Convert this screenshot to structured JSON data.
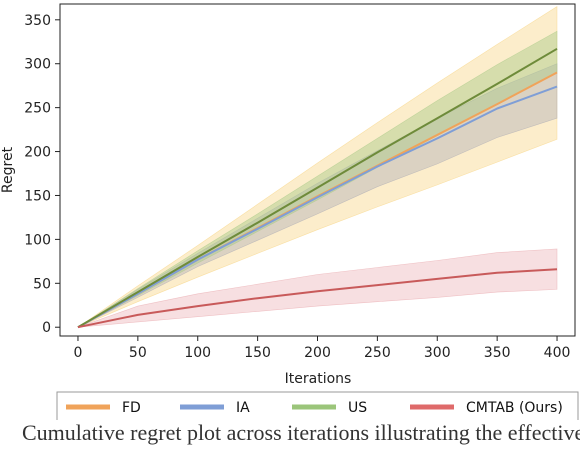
{
  "chart_data": {
    "type": "line",
    "title": "",
    "xlabel": "Iterations",
    "ylabel": "Regret",
    "xlim": [
      -15,
      415
    ],
    "ylim": [
      -10,
      368
    ],
    "xticks": [
      0,
      50,
      100,
      150,
      200,
      250,
      300,
      350,
      400
    ],
    "yticks": [
      0,
      50,
      100,
      150,
      200,
      250,
      300,
      350
    ],
    "grid": false,
    "legend_position": "bottom",
    "x": [
      0,
      50,
      100,
      150,
      200,
      250,
      300,
      350,
      400
    ],
    "series": [
      {
        "name": "FD",
        "color": "#f0a35a",
        "band_color": "#f7d27c",
        "values": [
          0,
          38,
          77,
          113,
          149,
          184,
          219,
          254,
          290
        ],
        "lower": [
          0,
          29,
          57,
          84,
          111,
          137,
          162,
          188,
          214
        ],
        "upper": [
          0,
          47,
          93,
          140,
          187,
          233,
          278,
          322,
          365
        ]
      },
      {
        "name": "IA",
        "color": "#7f9ed6",
        "band_color": "#a9a9b4",
        "values": [
          0,
          38,
          77,
          112,
          148,
          183,
          215,
          249,
          274
        ],
        "lower": [
          0,
          34,
          69,
          99,
          129,
          160,
          186,
          216,
          238
        ],
        "upper": [
          0,
          43,
          84,
          124,
          164,
          201,
          238,
          272,
          300
        ]
      },
      {
        "name": "US",
        "color": "#9bc57a",
        "band_color": "#a8c987",
        "line_color": "#6e8b3a",
        "values": [
          0,
          40,
          80,
          119,
          159,
          199,
          238,
          277,
          317
        ],
        "lower": [
          0,
          36,
          73,
          109,
          145,
          182,
          218,
          254,
          290
        ],
        "upper": [
          0,
          44,
          87,
          129,
          172,
          215,
          258,
          299,
          337
        ]
      },
      {
        "name": "CMTAB (Ours)",
        "color": "#df6a6a",
        "band_color": "#e7a3a8",
        "line_color": "#c85a5a",
        "values": [
          0,
          14,
          24,
          33,
          41,
          48,
          55,
          62,
          66
        ],
        "lower": [
          0,
          6,
          12,
          18,
          24,
          29,
          34,
          40,
          43
        ],
        "upper": [
          0,
          24,
          38,
          49,
          60,
          68,
          76,
          85,
          89
        ]
      }
    ]
  },
  "caption": "Cumulative regret plot across iterations illustrating the effectiveness of"
}
